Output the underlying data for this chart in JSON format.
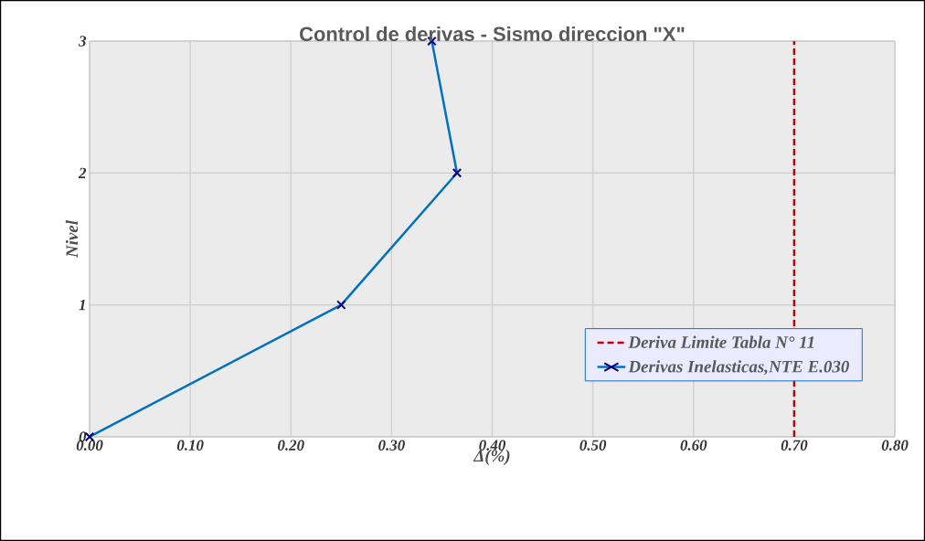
{
  "chart_data": {
    "type": "line",
    "title": "Control de derivas - Sismo  direccion  \"X\"",
    "xlabel": "Δ(%)",
    "ylabel": "Nivel",
    "series": [
      {
        "name": "Derivas Inelasticas,NTE E.030",
        "color": "#0070c0",
        "x": [
          0,
          0.25,
          0.365,
          0.34
        ],
        "values": [
          0,
          1,
          2,
          3
        ]
      }
    ],
    "ref_lines": [
      {
        "axis": "x",
        "value": 0.7,
        "label": "Deriva Limite Tabla N° 11",
        "color": "#c00000",
        "line_style": "dashed"
      }
    ],
    "xlim": [
      0,
      0.8
    ],
    "xticks": [
      {
        "value": 0,
        "label": "0.00"
      },
      {
        "value": 0.1,
        "label": "0.10"
      },
      {
        "value": 0.2,
        "label": "0.20"
      },
      {
        "value": 0.3,
        "label": "0.30"
      },
      {
        "value": 0.4,
        "label": "0.40"
      },
      {
        "value": 0.5,
        "label": "0.50"
      },
      {
        "value": 0.6,
        "label": "0.60"
      },
      {
        "value": 0.7,
        "label": "0.70"
      },
      {
        "value": 0.8,
        "label": "0.80"
      }
    ],
    "ylim": [
      0,
      3
    ],
    "yticks": [
      0,
      1,
      2,
      3
    ],
    "grid": true,
    "legend": "bottom right",
    "marker": "cross",
    "line_style": "solid"
  }
}
